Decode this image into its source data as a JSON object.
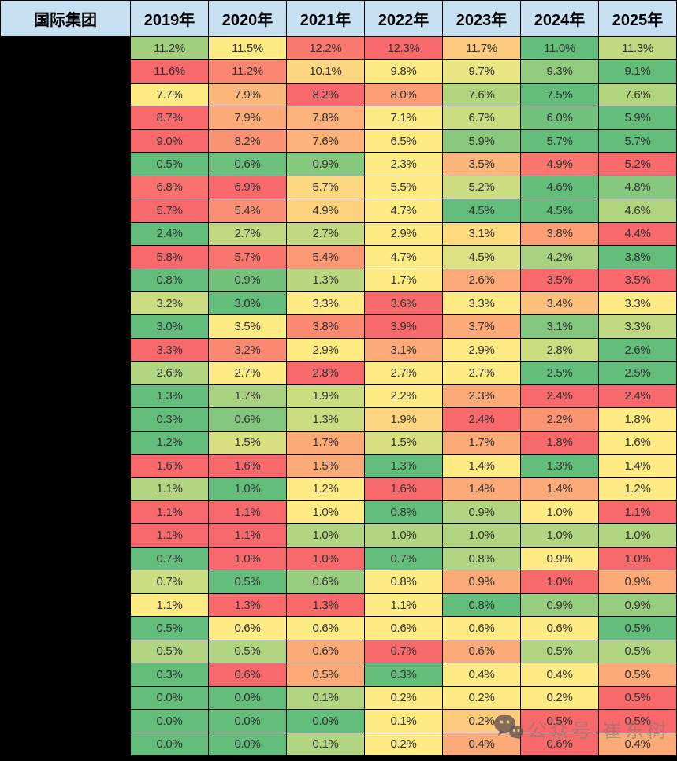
{
  "header": {
    "label_column_title": "国际集团",
    "year_columns": [
      "2019年",
      "2020年",
      "2021年",
      "2022年",
      "2023年",
      "2024年",
      "2025年"
    ],
    "header_bg": "#C8E1F2"
  },
  "heatmap_scale": {
    "min_color": "#63BE7B",
    "mid_color": "#FFEB84",
    "max_color": "#F8696B",
    "applied": "per-row, min=green / 50th-percentile=yellow / max=red"
  },
  "row_labels": {
    "redacted": true,
    "note": "left label column is blacked out in the source image"
  },
  "watermark": {
    "text": "公众号·崔东树",
    "icon": "wechat-icon"
  },
  "chart_data": {
    "type": "heatmap",
    "title": "国际集团",
    "columns": [
      "2019年",
      "2020年",
      "2021年",
      "2022年",
      "2023年",
      "2024年",
      "2025年"
    ],
    "unit": "%",
    "value_format": "one decimal place followed by %",
    "rows": [
      [
        11.2,
        11.5,
        12.2,
        12.3,
        11.7,
        11.0,
        11.3
      ],
      [
        11.6,
        11.2,
        10.1,
        9.8,
        9.7,
        9.3,
        9.1
      ],
      [
        7.7,
        7.9,
        8.2,
        8.0,
        7.6,
        7.5,
        7.6
      ],
      [
        8.7,
        7.9,
        7.8,
        7.1,
        6.7,
        6.0,
        5.9
      ],
      [
        9.0,
        8.2,
        7.6,
        6.5,
        5.9,
        5.7,
        5.7
      ],
      [
        0.5,
        0.6,
        0.9,
        2.3,
        3.5,
        4.9,
        5.2
      ],
      [
        6.8,
        6.9,
        5.7,
        5.5,
        5.2,
        4.6,
        4.8
      ],
      [
        5.7,
        5.4,
        4.9,
        4.7,
        4.5,
        4.5,
        4.6
      ],
      [
        2.4,
        2.7,
        2.7,
        2.9,
        3.1,
        3.8,
        4.4
      ],
      [
        5.8,
        5.7,
        5.4,
        4.7,
        4.5,
        4.2,
        3.8
      ],
      [
        0.8,
        0.9,
        1.3,
        1.7,
        2.6,
        3.5,
        3.5
      ],
      [
        3.2,
        3.0,
        3.3,
        3.6,
        3.3,
        3.4,
        3.3
      ],
      [
        3.0,
        3.5,
        3.8,
        3.9,
        3.7,
        3.1,
        3.3
      ],
      [
        3.3,
        3.2,
        2.9,
        3.1,
        2.9,
        2.8,
        2.6
      ],
      [
        2.6,
        2.7,
        2.8,
        2.7,
        2.7,
        2.5,
        2.5
      ],
      [
        1.3,
        1.7,
        1.9,
        2.2,
        2.3,
        2.4,
        2.4
      ],
      [
        0.3,
        0.6,
        1.3,
        1.9,
        2.4,
        2.2,
        1.8
      ],
      [
        1.2,
        1.5,
        1.7,
        1.5,
        1.7,
        1.8,
        1.6
      ],
      [
        1.6,
        1.6,
        1.5,
        1.3,
        1.4,
        1.3,
        1.4
      ],
      [
        1.1,
        1.0,
        1.2,
        1.6,
        1.4,
        1.4,
        1.2
      ],
      [
        1.1,
        1.1,
        1.0,
        0.8,
        0.9,
        1.0,
        1.1
      ],
      [
        1.1,
        1.1,
        1.0,
        1.0,
        1.0,
        1.0,
        1.0
      ],
      [
        0.7,
        1.0,
        1.0,
        0.7,
        0.8,
        0.9,
        1.0
      ],
      [
        0.7,
        0.5,
        0.6,
        0.8,
        0.9,
        1.0,
        0.9
      ],
      [
        1.1,
        1.3,
        1.3,
        1.1,
        0.8,
        0.9,
        0.9
      ],
      [
        0.5,
        0.6,
        0.6,
        0.6,
        0.6,
        0.6,
        0.5
      ],
      [
        0.5,
        0.5,
        0.6,
        0.7,
        0.6,
        0.5,
        0.5
      ],
      [
        0.3,
        0.6,
        0.5,
        0.3,
        0.4,
        0.4,
        0.5
      ],
      [
        0.0,
        0.0,
        0.1,
        0.2,
        0.2,
        0.2,
        0.5
      ],
      [
        0.0,
        0.0,
        0.0,
        0.1,
        0.2,
        0.5,
        0.5
      ],
      [
        0.0,
        0.0,
        0.1,
        0.2,
        0.4,
        0.6,
        0.4
      ]
    ],
    "legend": "none",
    "grid": "black 1px cell borders, thick black bottom border"
  }
}
